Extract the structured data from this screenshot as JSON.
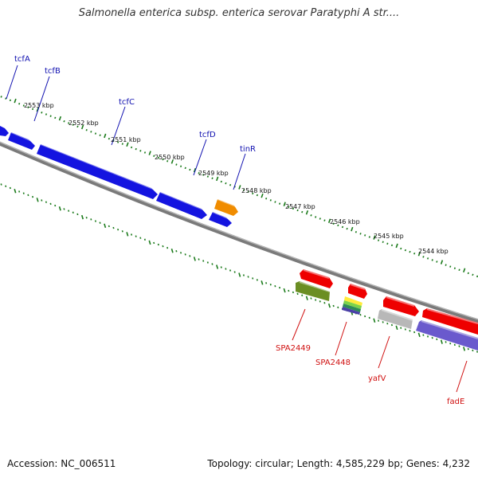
{
  "title": "Salmonella enterica subsp. enterica serovar Paratyphi A str....",
  "footer": {
    "accession_label": "Accession:",
    "accession": "NC_006511",
    "topology_label": "Topology:",
    "topology": "circular",
    "length_label": "Length:",
    "length": "4,585,229 bp",
    "genes_label": "Genes:",
    "genes": "4,232"
  },
  "colors": {
    "backbone": "#7a7a7a",
    "tick": "#1a7a1a",
    "forward_label": "#1010b0",
    "reverse_label": "#d01010"
  },
  "scale_labels": [
    "2553 kbp",
    "2552 kbp",
    "2551 kbp",
    "2550 kbp",
    "2549 kbp",
    "2548 kbp",
    "2547 kbp",
    "2546 kbp",
    "2545 kbp",
    "2544 kbp"
  ],
  "forward_gene_labels": [
    "tcfA",
    "tcfB",
    "tcfC",
    "tcfD",
    "tinR"
  ],
  "reverse_gene_labels": [
    "SPA2449",
    "SPA2448",
    "yafV",
    "fadE"
  ],
  "features": [
    {
      "name": "blue-gene",
      "color": "#1414e0"
    },
    {
      "name": "orange-gene",
      "color": "#f08c00"
    },
    {
      "name": "red-gene",
      "color": "#ee0000"
    },
    {
      "name": "olive-gene",
      "color": "#6b8e23"
    },
    {
      "name": "gray-gene",
      "color": "#b8b8b8"
    },
    {
      "name": "purple-gene",
      "color": "#6a5acd"
    },
    {
      "name": "multicolor-gene",
      "color": "#7cd34a"
    }
  ]
}
